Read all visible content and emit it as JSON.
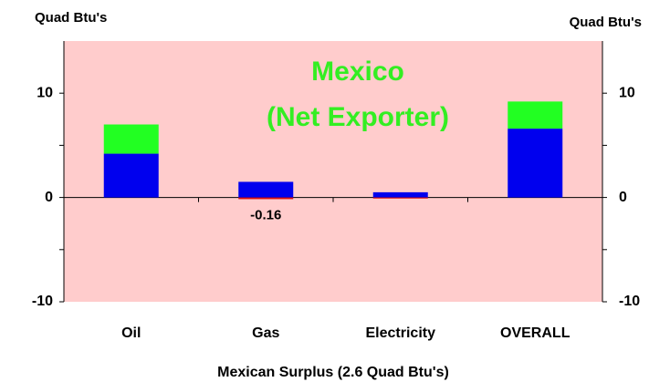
{
  "chart_data": {
    "type": "bar",
    "stacked": true,
    "xlabel": "Mexican Surplus (2.6 Quad Btu's)",
    "ylabel": "Quad Btu's",
    "y2label": "Quad Btu's",
    "annotations": [
      "Mexico",
      "(Net Exporter)"
    ],
    "annotation_color": "#33ee22",
    "background": "#ffcccc",
    "categories": [
      "Oil",
      "Gas",
      "Electricity",
      "OVERALL"
    ],
    "series": [
      {
        "color": "#0000ee",
        "values": [
          4.2,
          1.5,
          0.5,
          6.6
        ]
      },
      {
        "color": "#22ff22",
        "values": [
          2.8,
          0,
          0,
          2.6
        ]
      },
      {
        "color": "#dd1111",
        "values": [
          0,
          -0.16,
          -0.1,
          0
        ],
        "value_labels": [
          null,
          "-0.16",
          null,
          null
        ]
      }
    ],
    "ylim": [
      -10,
      15
    ],
    "yticks": [
      -10,
      0,
      10
    ],
    "yminor_ticks": [
      -5,
      5
    ],
    "y2lim": [
      -10,
      15
    ],
    "y2ticks": [
      -10,
      0,
      10
    ]
  }
}
